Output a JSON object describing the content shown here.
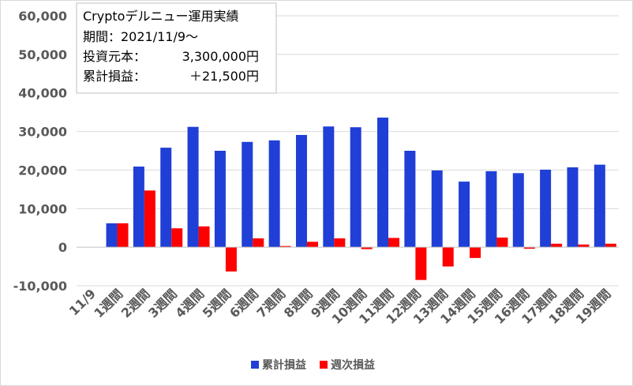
{
  "info_box": {
    "title": "Cryptoデルニュー運用実績",
    "period": "期間：2021/11/9～",
    "investment_label": "投資元本：",
    "investment_value": "3,300,000円",
    "profit_label": "累計損益：",
    "profit_value": "＋21,500円"
  },
  "chart_data": {
    "type": "bar",
    "categories": [
      "11/9",
      "1週間",
      "2週間",
      "3週間",
      "4週間",
      "5週間",
      "6週間",
      "7週間",
      "8週間",
      "9週間",
      "10週間",
      "11週間",
      "12週間",
      "13週間",
      "14週間",
      "15週間",
      "16週間",
      "17週間",
      "18週間",
      "19週間"
    ],
    "series": [
      {
        "name": "累計損益",
        "color": "#1f3fd6",
        "values": [
          null,
          6200,
          20900,
          25800,
          31200,
          25000,
          27300,
          27700,
          29100,
          31300,
          31100,
          33600,
          25000,
          19900,
          17000,
          19700,
          19200,
          20100,
          20700,
          21400
        ]
      },
      {
        "name": "週次損益",
        "color": "#ff0000",
        "values": [
          null,
          6200,
          14700,
          4900,
          5400,
          -6300,
          2300,
          300,
          1400,
          2300,
          -500,
          2400,
          -8500,
          -5000,
          -2800,
          2500,
          -400,
          900,
          700,
          900
        ]
      }
    ],
    "ylim": [
      -10000,
      60000
    ],
    "yticks": [
      "-10,000",
      "0",
      "10,000",
      "20,000",
      "30,000",
      "40,000",
      "50,000",
      "60,000"
    ],
    "ytick_values": [
      -10000,
      0,
      10000,
      20000,
      30000,
      40000,
      50000,
      60000
    ],
    "grid": true,
    "legend_position": "bottom"
  }
}
